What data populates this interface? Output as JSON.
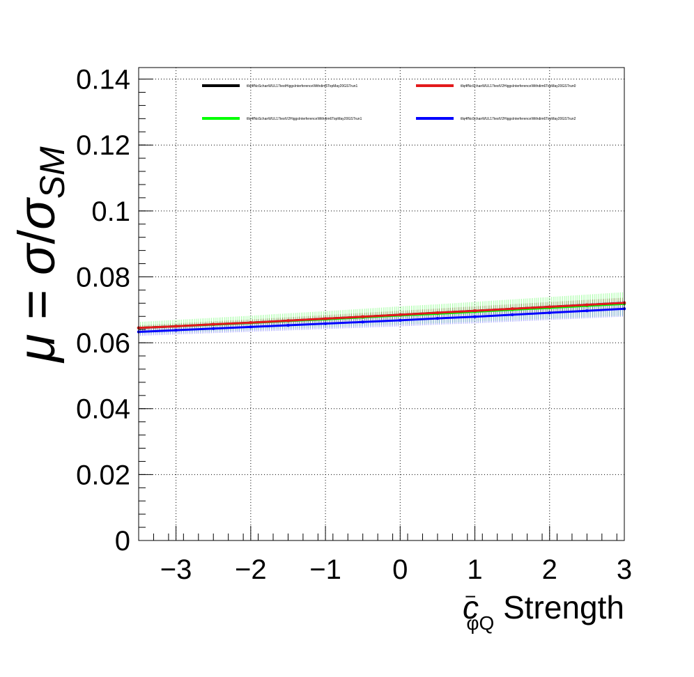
{
  "chart_data": {
    "type": "line",
    "title": "",
    "ylabel": "μ = σ/σ_SM",
    "ylabel_parts": {
      "mu": "μ",
      "eq": " = ",
      "sigma": "σ",
      "slash": "/",
      "sigma_sm": "σ",
      "sub": "SM"
    },
    "xlabel": "c⁻φQ Strength",
    "xlabel_parts": {
      "c": "c",
      "sup": "−",
      "sub": "φQ",
      "rest": " Strength"
    },
    "xlim": [
      -3.5,
      3
    ],
    "ylim": [
      0,
      0.1435
    ],
    "xticks": [
      -3,
      -2,
      -1,
      0,
      1,
      2,
      3
    ],
    "xtick_labels": [
      "−3",
      "−2",
      "−1",
      "0",
      "1",
      "2",
      "3"
    ],
    "yticks": [
      0,
      0.02,
      0.04,
      0.06,
      0.08,
      0.1,
      0.12,
      0.14
    ],
    "ytick_labels": [
      "0",
      "0.02",
      "0.04",
      "0.06",
      "0.08",
      "0.1",
      "0.12",
      "0.14"
    ],
    "grid": true,
    "legend_position": "top",
    "x": [
      -3.5,
      -3,
      -2.5,
      -2,
      -1.5,
      -1,
      -0.5,
      0,
      0.5,
      1,
      1.5,
      2,
      2.5,
      3
    ],
    "series": [
      {
        "name": "tllq4fNoSchanWUL17testHiggsInterferenceWithdim6TopMay20GSTrun1",
        "color": "#000000",
        "values": [
          0.0645,
          0.065,
          0.0656,
          0.0661,
          0.0667,
          0.0673,
          0.0679,
          0.0685,
          0.0691,
          0.0697,
          0.0703,
          0.0709,
          0.0715,
          0.0721
        ],
        "band": 0.0008
      },
      {
        "name": "tllq4fNoSchanWUL17testV2HiggsInterferenceWithdim6TopMay20GSTrun0",
        "color": "#e31a1c",
        "values": [
          0.0645,
          0.065,
          0.0656,
          0.0661,
          0.0667,
          0.0673,
          0.0679,
          0.0685,
          0.0691,
          0.0697,
          0.0703,
          0.0709,
          0.0715,
          0.0721
        ],
        "band": 0.0008
      },
      {
        "name": "tllq4fNoSchanWUL17testV2HiggsInterferenceWithdim6TopMay20GSTrun1",
        "color": "#00ff00",
        "values": [
          0.0645,
          0.065,
          0.0655,
          0.066,
          0.0666,
          0.0671,
          0.0677,
          0.0683,
          0.0688,
          0.0694,
          0.07,
          0.0706,
          0.0712,
          0.0718
        ],
        "band": 0.0018
      },
      {
        "name": "tllq4fNoSchanWUL17testV2HiggsInterferenceWithdim6TopMay20GSTrun2",
        "color": "#0000ff",
        "values": [
          0.0633,
          0.0638,
          0.0643,
          0.0648,
          0.0653,
          0.0658,
          0.0663,
          0.0668,
          0.0674,
          0.0679,
          0.0685,
          0.0691,
          0.0697,
          0.0703
        ],
        "band": 0.0012
      }
    ]
  }
}
